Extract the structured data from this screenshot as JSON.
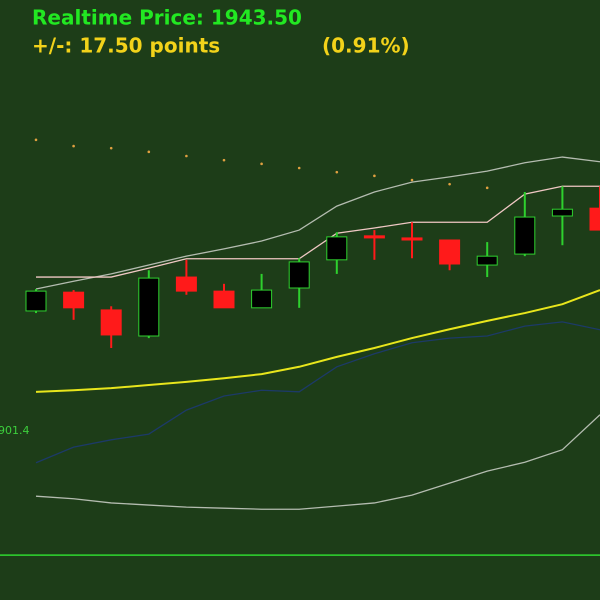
{
  "chart_data": {
    "type": "candlestick",
    "title": "Realtime Price: 1943.50",
    "subtitle": "+/-: 17.50 points",
    "change_percent": "(0.91%)",
    "annotation": "901.4",
    "categories": [
      null,
      null,
      null,
      null,
      null,
      null,
      null,
      null,
      null,
      null,
      null,
      null,
      null,
      null,
      null,
      null
    ],
    "open": [
      1924.4,
      1928.0,
      1924.6,
      1919.6,
      1930.9,
      1928.2,
      1925.0,
      1928.8,
      1934.2,
      1938.8,
      1938.4,
      1938.0,
      1933.2,
      1935.3,
      1942.6,
      1944.1
    ],
    "high": [
      1928.6,
      1928.4,
      1925.3,
      1932.2,
      1934.2,
      1929.6,
      1931.5,
      1934.5,
      1939.5,
      1939.9,
      1941.4,
      1938.0,
      1937.6,
      1947.2,
      1948.3,
      1948.3
    ],
    "low": [
      1924.0,
      1922.7,
      1917.3,
      1919.2,
      1927.5,
      1925.0,
      1925.0,
      1925.0,
      1931.5,
      1934.2,
      1934.5,
      1932.2,
      1930.9,
      1934.9,
      1937.0,
      1939.9
    ],
    "close": [
      1928.2,
      1925.0,
      1919.8,
      1930.7,
      1928.2,
      1925.0,
      1928.4,
      1933.8,
      1938.6,
      1938.4,
      1938.0,
      1933.4,
      1934.9,
      1942.4,
      1943.9,
      1939.9
    ],
    "up_color": "#000000",
    "up_edge_color": "#2ed12e",
    "down_color": "#ff1a1a",
    "lines": [
      {
        "color": "#b4bcb0",
        "values": [
          1928.6,
          1930.1,
          1931.5,
          1933.2,
          1934.9,
          1936.3,
          1937.8,
          1939.9,
          1944.5,
          1947.2,
          1949.1,
          1950.1,
          1951.2,
          1952.8,
          1953.9,
          1953.0
        ]
      },
      {
        "color": "#f0c8c4",
        "values": [
          1930.9,
          1930.9,
          1930.9,
          1932.6,
          1934.4,
          1934.4,
          1934.4,
          1934.4,
          1939.3,
          1940.3,
          1941.4,
          1941.4,
          1941.4,
          1946.8,
          1948.3,
          1948.3
        ]
      },
      {
        "color": "#e8e61c",
        "values": [
          1908.9,
          1909.2,
          1909.6,
          1910.2,
          1910.8,
          1911.5,
          1912.3,
          1913.7,
          1915.6,
          1917.3,
          1919.2,
          1920.9,
          1922.5,
          1924.0,
          1925.7,
          1928.4
        ]
      },
      {
        "color": "#1c3a68",
        "values": [
          1895.3,
          1898.3,
          1899.7,
          1900.8,
          1905.4,
          1908.1,
          1909.2,
          1908.9,
          1913.7,
          1916.2,
          1918.3,
          1919.2,
          1919.6,
          1921.5,
          1922.3,
          1920.8
        ]
      },
      {
        "color": "#b4bcb0",
        "values": [
          1888.9,
          1888.4,
          1887.6,
          1887.2,
          1886.8,
          1886.6,
          1886.4,
          1886.4,
          1887.0,
          1887.6,
          1889.1,
          1891.4,
          1893.7,
          1895.4,
          1897.8,
          1904.5
        ]
      }
    ],
    "dots": {
      "color": "#e0a040",
      "values": [
        1957.2,
        1956.0,
        1955.6,
        1954.9,
        1954.1,
        1953.3,
        1952.6,
        1951.8,
        1951.0,
        1950.3,
        1949.5,
        1948.7,
        1948.0,
        null,
        null,
        null
      ]
    },
    "reference_line": {
      "color": "#2fd82f",
      "value": 1877.6
    },
    "ylim": [
      1869,
      1984
    ]
  }
}
